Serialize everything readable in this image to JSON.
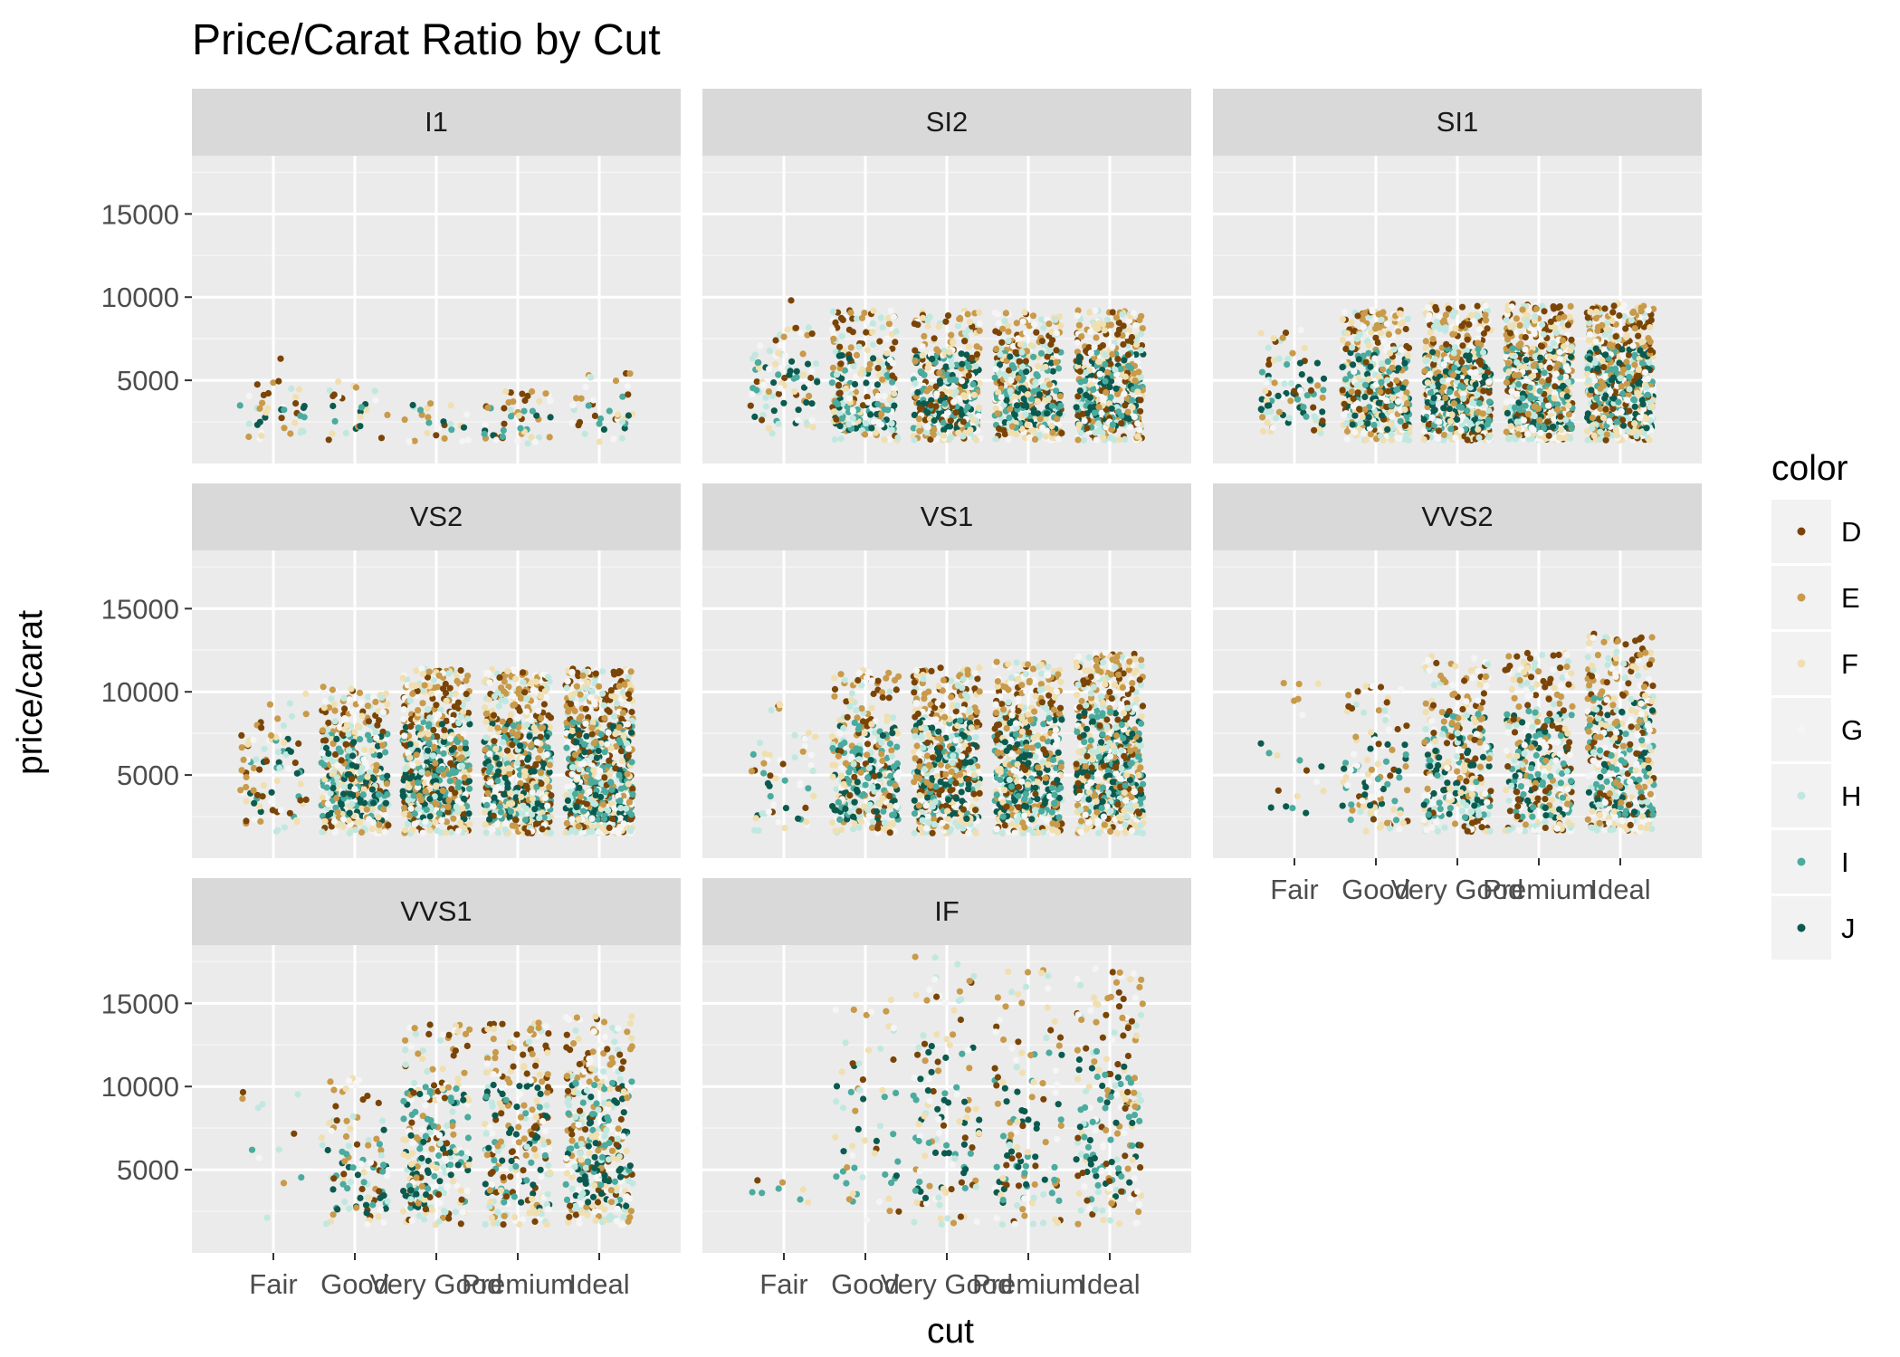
{
  "chart_data": {
    "type": "scatter",
    "jitter": true,
    "title": "Price/Carat Ratio by Cut",
    "xlabel": "cut",
    "ylabel": "price/carat",
    "categories": [
      "Fair",
      "Good",
      "Very Good",
      "Premium",
      "Ideal"
    ],
    "y_ticks": [
      5000,
      10000,
      15000
    ],
    "ylim": [
      0,
      18500
    ],
    "grid": true,
    "legend": {
      "title": "color",
      "placement": "right",
      "entries": [
        {
          "label": "D",
          "color": "#7a4406"
        },
        {
          "label": "E",
          "color": "#c89a4a"
        },
        {
          "label": "F",
          "color": "#f0dfb0"
        },
        {
          "label": "G",
          "color": "#f5f5f5"
        },
        {
          "label": "H",
          "color": "#c1e8e0"
        },
        {
          "label": "I",
          "color": "#4aab9e"
        },
        {
          "label": "J",
          "color": "#0b5a4f"
        }
      ]
    },
    "facets": [
      {
        "label": "I1",
        "counts": [
          40,
          25,
          25,
          50,
          40
        ],
        "ymin": [
          1400,
          1300,
          1300,
          1200,
          1300
        ],
        "ymax": [
          5000,
          5000,
          4600,
          4600,
          5500
        ],
        "outliers": [
          [
            0,
            6300
          ]
        ]
      },
      {
        "label": "SI2",
        "counts": [
          90,
          260,
          380,
          420,
          450
        ],
        "ymin": [
          1800,
          1400,
          1400,
          1400,
          1400
        ],
        "ymax": [
          8200,
          9200,
          9200,
          9200,
          9200
        ],
        "outliers": [
          [
            0,
            9800
          ]
        ]
      },
      {
        "label": "SI1",
        "counts": [
          90,
          380,
          560,
          600,
          640
        ],
        "ymin": [
          1800,
          1400,
          1400,
          1400,
          1400
        ],
        "ymax": [
          8200,
          9300,
          9600,
          9600,
          9600
        ],
        "outliers": []
      },
      {
        "label": "VS2",
        "counts": [
          90,
          420,
          600,
          640,
          700
        ],
        "ymin": [
          1500,
          1500,
          1500,
          1500,
          1500
        ],
        "ymax": [
          10000,
          10300,
          11400,
          11400,
          11400
        ],
        "outliers": []
      },
      {
        "label": "VS1",
        "counts": [
          55,
          320,
          520,
          560,
          620
        ],
        "ymin": [
          1500,
          1500,
          1500,
          1500,
          1500
        ],
        "ymax": [
          10300,
          11300,
          11600,
          11800,
          12400
        ],
        "outliers": []
      },
      {
        "label": "VVS2",
        "counts": [
          20,
          110,
          300,
          330,
          450
        ],
        "ymin": [
          2000,
          1600,
          1600,
          1600,
          1600
        ],
        "ymax": [
          10800,
          10500,
          12200,
          12400,
          13500
        ],
        "outliers": []
      },
      {
        "label": "VVS1",
        "counts": [
          12,
          100,
          250,
          260,
          380
        ],
        "ymin": [
          1800,
          1700,
          1700,
          1700,
          1700
        ],
        "ymax": [
          10700,
          10500,
          13900,
          14200,
          14400
        ],
        "outliers": []
      },
      {
        "label": "IF",
        "counts": [
          8,
          60,
          130,
          130,
          200
        ],
        "ymin": [
          3000,
          1700,
          1700,
          1700,
          1700
        ],
        "ymax": [
          4800,
          16000,
          17800,
          17100,
          17100
        ],
        "outliers": []
      }
    ]
  }
}
